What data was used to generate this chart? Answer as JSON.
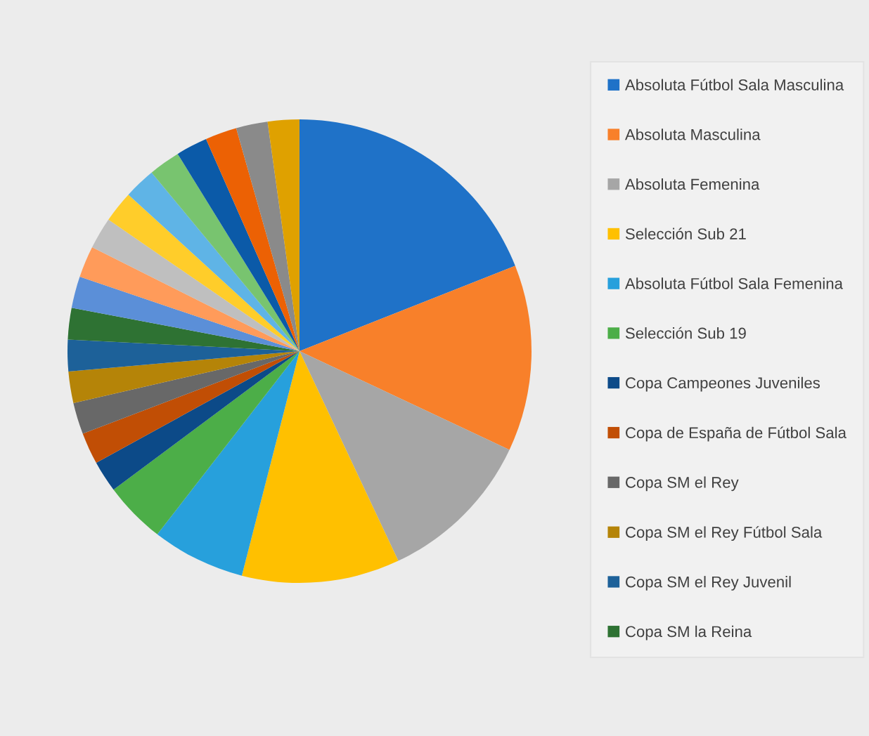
{
  "chart_data": {
    "type": "pie",
    "categories": [
      "Absoluta Fútbol Sala Masculina",
      "Absoluta Masculina",
      "Absoluta Femenina",
      "Selección Sub 21",
      "Absoluta Fútbol Sala Femenina",
      "Selección Sub 19",
      "Copa Campeones Juveniles",
      "Copa de España de Fútbol Sala",
      "Copa SM el Rey",
      "Copa SM el Rey Fútbol Sala",
      "Copa SM el Rey Juvenil",
      "Copa SM la Reina",
      null,
      null,
      null,
      null,
      null,
      null,
      null,
      null,
      null,
      null
    ],
    "values": [
      19,
      13,
      11,
      11,
      6.5,
      4.3,
      2.2,
      2.2,
      2.2,
      2.2,
      2.2,
      2.2,
      2.2,
      2.2,
      2.2,
      2.2,
      2.2,
      2.2,
      2.2,
      2.2,
      2.2,
      2.2
    ],
    "colors": [
      "#1f72c8",
      "#f8802a",
      "#a6a6a6",
      "#ffc000",
      "#27a0dc",
      "#4cae48",
      "#0c4a88",
      "#c14e05",
      "#686868",
      "#b58408",
      "#1d6199",
      "#2e7233",
      "#5b8fd8",
      "#ff9b5a",
      "#bfbfbf",
      "#ffcd2a",
      "#5fb4e6",
      "#78c46f",
      "#0b5aa8",
      "#ec6104",
      "#8a8a8a",
      "#dfa100"
    ],
    "legend": "right"
  }
}
